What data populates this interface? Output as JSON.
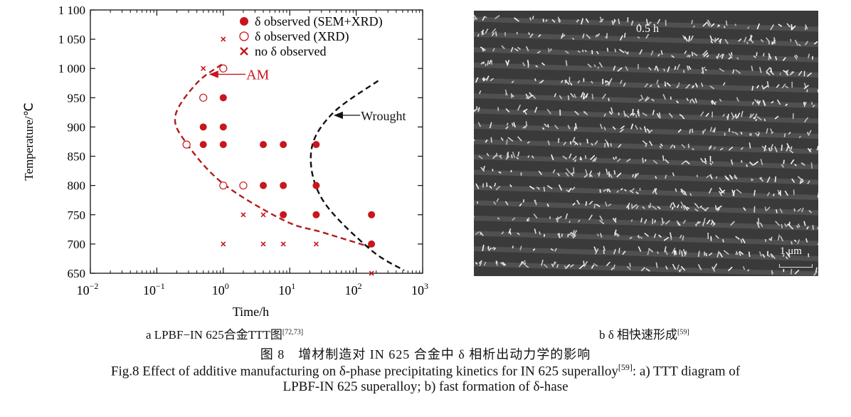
{
  "chart_data": {
    "type": "scatter",
    "xlabel": "Time/h",
    "ylabel": "Temperature/℃",
    "xscale": "log",
    "xlim": [
      0.01,
      1000
    ],
    "ylim": [
      650,
      1100
    ],
    "xticks": [
      {
        "v": 0.01,
        "label": "10",
        "exp": "−2"
      },
      {
        "v": 0.1,
        "label": "10",
        "exp": "−1"
      },
      {
        "v": 1,
        "label": "10",
        "exp": "0"
      },
      {
        "v": 10,
        "label": "10",
        "exp": "1"
      },
      {
        "v": 100,
        "label": "10",
        "exp": "2"
      },
      {
        "v": 1000,
        "label": "10",
        "exp": "3"
      }
    ],
    "yticks": [
      {
        "v": 650,
        "label": "650"
      },
      {
        "v": 700,
        "label": "700"
      },
      {
        "v": 750,
        "label": "750"
      },
      {
        "v": 800,
        "label": "800"
      },
      {
        "v": 850,
        "label": "850"
      },
      {
        "v": 900,
        "label": "900"
      },
      {
        "v": 950,
        "label": "950"
      },
      {
        "v": 1000,
        "label": "1 000"
      },
      {
        "v": 1050,
        "label": "1 050"
      },
      {
        "v": 1100,
        "label": "1 100"
      }
    ],
    "grid": false,
    "legend_placement": "top-right",
    "colors": {
      "points": "#c8161d",
      "am_curve": "#b01c1c",
      "wrought_curve": "#111111"
    },
    "series": [
      {
        "name": "δ observed (SEM+XRD)",
        "marker": "filled-circle",
        "points": [
          [
            1,
            950
          ],
          [
            0.5,
            900
          ],
          [
            1,
            900
          ],
          [
            0.5,
            870
          ],
          [
            1,
            870
          ],
          [
            4,
            870
          ],
          [
            8,
            870
          ],
          [
            25,
            870
          ],
          [
            4,
            800
          ],
          [
            8,
            800
          ],
          [
            25,
            800
          ],
          [
            8,
            750
          ],
          [
            25,
            750
          ],
          [
            170,
            750
          ],
          [
            170,
            700
          ]
        ]
      },
      {
        "name": "δ observed (XRD)",
        "marker": "open-circle",
        "points": [
          [
            1,
            1000
          ],
          [
            0.5,
            950
          ],
          [
            0.28,
            870
          ],
          [
            1,
            800
          ],
          [
            2,
            800
          ]
        ]
      },
      {
        "name": "no δ observed",
        "marker": "cross",
        "points": [
          [
            1,
            1050
          ],
          [
            0.5,
            1000
          ],
          [
            2,
            750
          ],
          [
            4,
            750
          ],
          [
            1,
            700
          ],
          [
            4,
            700
          ],
          [
            8,
            700
          ],
          [
            25,
            700
          ],
          [
            170,
            650
          ]
        ]
      }
    ],
    "curves": [
      {
        "label": "AM",
        "style": "dashed",
        "points": [
          [
            0.95,
            1007
          ],
          [
            0.4,
            975
          ],
          [
            0.19,
            919
          ],
          [
            0.28,
            872
          ],
          [
            1,
            803
          ],
          [
            8.3,
            740
          ],
          [
            31,
            720
          ],
          [
            162,
            695
          ]
        ],
        "arrow_to": [
          0.6,
          990
        ]
      },
      {
        "label": "Wrought",
        "style": "dashed",
        "points": [
          [
            214,
            979
          ],
          [
            43,
            922
          ],
          [
            21,
            858
          ],
          [
            31,
            776
          ],
          [
            162,
            691
          ],
          [
            525,
            655
          ]
        ],
        "arrow_to": [
          45,
          920
        ]
      }
    ]
  },
  "micrograph": {
    "time_label": "0.5 h",
    "scale_bar": "1 μm"
  },
  "captions": {
    "a_main": "a  LPBF−IN 625合金TTT图",
    "a_ref": "[72,73]",
    "b_main": "b  δ 相快速形成",
    "b_ref": "[59]",
    "figure_cn": "图 8　增材制造对 IN 625 合金中 δ 相析出动力学的影响",
    "figure_en_line1": "Fig.8 Effect of additive manufacturing on δ-phase precipitating kinetics for IN 625 superalloy",
    "figure_en_ref": "[59]",
    "figure_en_line1_tail": ": a) TTT diagram of",
    "figure_en_line2": "LPBF-IN 625 superalloy; b) fast formation of δ-hase"
  }
}
